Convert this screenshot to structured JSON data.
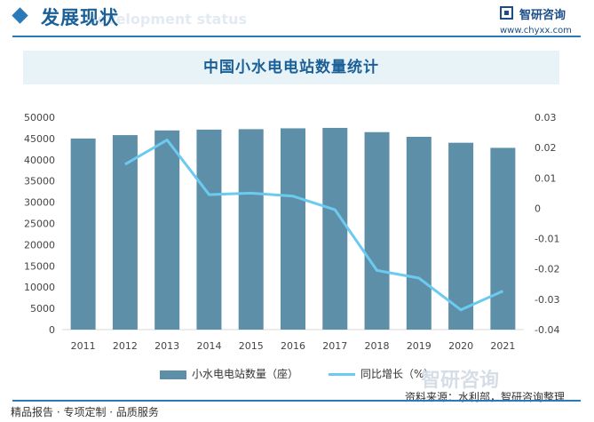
{
  "header": {
    "section_title": "发展现状",
    "section_title_en": "Development status",
    "brand_name": "智研咨询",
    "brand_url": "www.chyxx.com"
  },
  "chart_data": {
    "type": "bar",
    "title": "中国小水电电站数量统计",
    "categories": [
      "2011",
      "2012",
      "2013",
      "2014",
      "2015",
      "2016",
      "2017",
      "2018",
      "2019",
      "2020",
      "2021"
    ],
    "series": [
      {
        "name": "小水电电站数量（座）",
        "type": "bar",
        "axis": "left",
        "values": [
          45000,
          45800,
          46900,
          47100,
          47200,
          47400,
          47500,
          46500,
          45400,
          44000,
          42800
        ]
      },
      {
        "name": "同比增长（%）",
        "type": "line",
        "axis": "right",
        "values": [
          null,
          0.0145,
          0.0225,
          0.0045,
          0.005,
          0.004,
          -0.0005,
          -0.0205,
          -0.023,
          -0.0335,
          -0.0273
        ]
      }
    ],
    "y_left": {
      "min": 0,
      "max": 50000,
      "ticks": [
        "0",
        "5000",
        "10000",
        "15000",
        "20000",
        "25000",
        "30000",
        "35000",
        "40000",
        "45000",
        "50000"
      ]
    },
    "y_right": {
      "min": -0.04,
      "max": 0.03,
      "ticks": [
        "-0.04",
        "-0.03",
        "-0.02",
        "-0.01",
        "0",
        "0.01",
        "0.02",
        "0.03"
      ]
    },
    "colors": {
      "bar": "#5e8fa8",
      "line": "#6ccaf0"
    }
  },
  "footer": {
    "left_text": "精品报告 · 专项定制 · 品质服务",
    "source": "资料来源：水利部，智研咨询整理",
    "watermark": "智研咨询"
  }
}
